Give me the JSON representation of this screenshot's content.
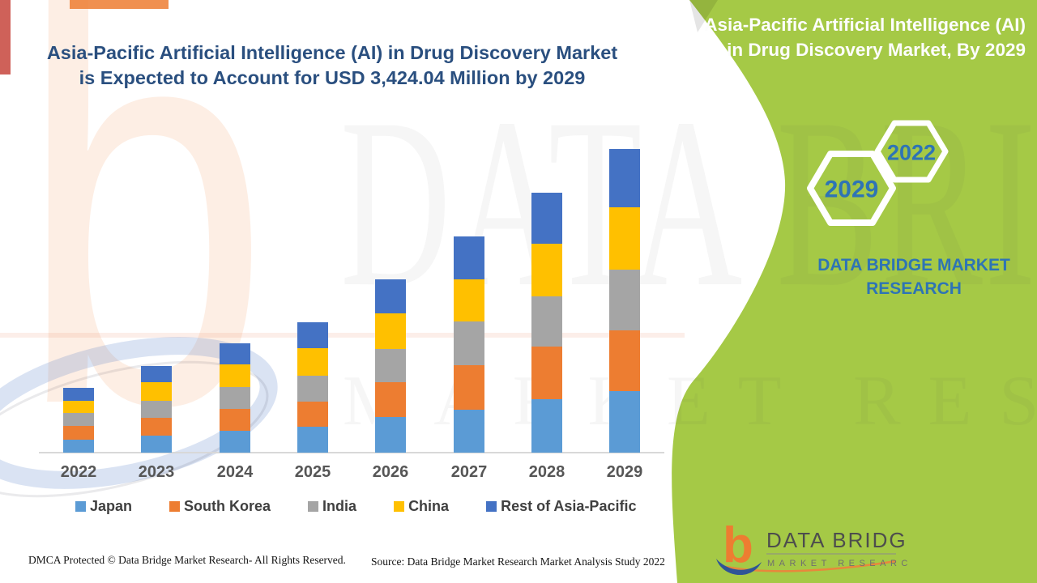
{
  "main_title": {
    "line1": "Asia-Pacific Artificial Intelligence (AI) in Drug Discovery Market",
    "line2": "is Expected to Account for USD 3,424.04 Million by 2029"
  },
  "side_panel": {
    "title_line1": "Asia-Pacific Artificial Intelligence (AI)",
    "title_line2": "in Drug Discovery Market, By 2029",
    "hexagons": [
      {
        "year": "2029"
      },
      {
        "year": "2022"
      }
    ],
    "brand_text": "DATA BRIDGE MARKET RESEARCH",
    "panel_color": "#A5C946",
    "hex_text_color": "#2E74B5"
  },
  "chart_data": {
    "type": "bar",
    "stacked": true,
    "title": "Asia-Pacific Artificial Intelligence (AI) in Drug Discovery Market is Expected to Account for USD 3,424.04 Million by 2029",
    "unit": "USD Million",
    "categories": [
      "2022",
      "2023",
      "2024",
      "2025",
      "2026",
      "2027",
      "2028",
      "2029"
    ],
    "series": [
      {
        "name": "Japan",
        "color": "#5B9BD5",
        "values": [
          146,
          189,
          244,
          289,
          399,
          486,
          602,
          693
        ]
      },
      {
        "name": "South Korea",
        "color": "#ED7D31",
        "values": [
          155,
          203,
          253,
          289,
          392,
          495,
          593,
          684
        ]
      },
      {
        "name": "India",
        "color": "#A5A5A5",
        "values": [
          143,
          192,
          244,
          292,
          374,
          495,
          563,
          684
        ]
      },
      {
        "name": "China",
        "color": "#FFC000",
        "values": [
          137,
          207,
          249,
          310,
          404,
          474,
          593,
          700
        ]
      },
      {
        "name": "Rest of Asia-Pacific",
        "color": "#4472C4",
        "values": [
          152,
          182,
          244,
          289,
          386,
          490,
          578,
          663
        ]
      }
    ],
    "totals": [
      733,
      973,
      1234,
      1469,
      1955,
      2440,
      2929,
      3424
    ],
    "values_estimated_from_bar_heights": true,
    "stated_total_2029": "3,424.04",
    "legend_position": "bottom",
    "y_axis_visible": false,
    "grid": false
  },
  "footer": {
    "left": "DMCA Protected © Data Bridge Market Research- All Rights Reserved.",
    "right": "Source: Data Bridge Market Research Market Analysis Study 2022"
  },
  "footer_logo": {
    "glyph": "b",
    "brand": "DATA BRIDGE",
    "sub": "MARKET RESEARCH"
  },
  "watermark": {
    "logo_glyph": "b",
    "line1": "DATA BRIDGE",
    "line2": "MARKET RESEARCH"
  }
}
